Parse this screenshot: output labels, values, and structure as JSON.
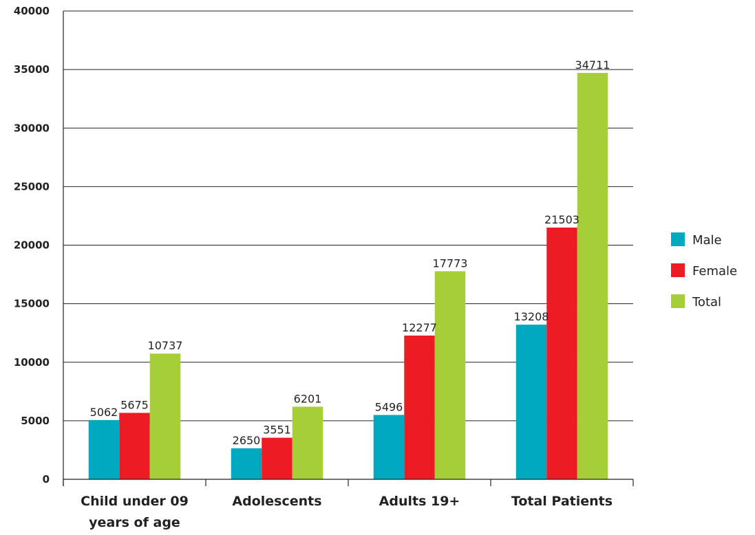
{
  "chart_data": {
    "type": "bar",
    "title": "",
    "xlabel": "",
    "ylabel": "",
    "categories": [
      [
        "Child under 09",
        "years of age"
      ],
      [
        "Adolescents"
      ],
      [
        "Adults 19+"
      ],
      [
        "Total Patients"
      ]
    ],
    "series": [
      {
        "name": "Male",
        "color": "#00a9bf",
        "values": [
          5062,
          2650,
          5496,
          13208
        ]
      },
      {
        "name": "Female",
        "color": "#ed1c24",
        "values": [
          5675,
          3551,
          12277,
          21503
        ]
      },
      {
        "name": "Total",
        "color": "#a6ce39",
        "values": [
          10737,
          6201,
          17773,
          34711
        ]
      }
    ],
    "ylim": [
      0,
      40000
    ],
    "yticks": [
      0,
      5000,
      10000,
      15000,
      20000,
      25000,
      30000,
      35000,
      40000
    ],
    "grid": true,
    "legend_position": "right"
  }
}
